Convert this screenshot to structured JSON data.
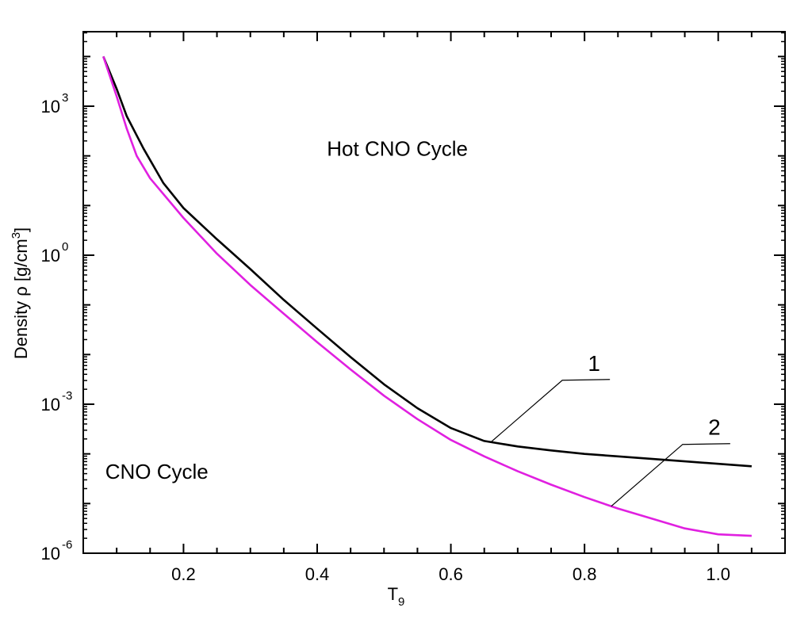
{
  "chart_data": {
    "type": "line",
    "title": "",
    "xlabel": "T",
    "xlabel_subscript": "9",
    "ylabel": "Density ρ [g/cm",
    "ylabel_superscript": "3",
    "ylabel_suffix": "]",
    "y_scale": "log",
    "xlim": [
      0.05,
      1.1
    ],
    "ylim_log10": [
      -6,
      4.5
    ],
    "x_ticks": [
      {
        "value": 0.2,
        "label": "0.2"
      },
      {
        "value": 0.4,
        "label": "0.4"
      },
      {
        "value": 0.6,
        "label": "0.6"
      },
      {
        "value": 0.8,
        "label": "0.8"
      },
      {
        "value": 1.0,
        "label": "1.0"
      }
    ],
    "y_ticks": [
      {
        "log10": 3,
        "base": "10",
        "exp": "3"
      },
      {
        "log10": 0,
        "base": "10",
        "exp": "0"
      },
      {
        "log10": -3,
        "base": "10",
        "exp": "-3"
      },
      {
        "log10": -6,
        "base": "10",
        "exp": "-6"
      }
    ],
    "annotations": [
      {
        "text": "Hot CNO Cycle",
        "x": 0.52,
        "log10y": 2.0
      },
      {
        "text": "CNO Cycle",
        "x": 0.16,
        "log10y": -4.5
      }
    ],
    "series": [
      {
        "name": "1",
        "color": "#000000",
        "x": [
          0.08,
          0.1,
          0.115,
          0.14,
          0.17,
          0.2,
          0.25,
          0.3,
          0.35,
          0.4,
          0.45,
          0.5,
          0.55,
          0.6,
          0.65,
          0.7,
          0.75,
          0.8,
          0.85,
          0.9,
          0.95,
          1.0,
          1.05
        ],
        "log10y": [
          4.0,
          3.35,
          2.8,
          2.15,
          1.45,
          0.95,
          0.32,
          -0.28,
          -0.9,
          -1.48,
          -2.05,
          -2.6,
          -3.08,
          -3.48,
          -3.74,
          -3.85,
          -3.93,
          -4.0,
          -4.05,
          -4.1,
          -4.15,
          -4.2,
          -4.25
        ]
      },
      {
        "name": "2",
        "color": "#e020e0",
        "x": [
          0.08,
          0.1,
          0.115,
          0.13,
          0.15,
          0.2,
          0.25,
          0.3,
          0.35,
          0.4,
          0.45,
          0.5,
          0.55,
          0.6,
          0.65,
          0.7,
          0.75,
          0.8,
          0.85,
          0.9,
          0.95,
          1.0,
          1.05
        ],
        "log10y": [
          4.0,
          3.2,
          2.55,
          2.0,
          1.55,
          0.75,
          0.03,
          -0.6,
          -1.18,
          -1.75,
          -2.3,
          -2.83,
          -3.3,
          -3.72,
          -4.05,
          -4.35,
          -4.62,
          -4.87,
          -5.1,
          -5.3,
          -5.5,
          -5.62,
          -5.65
        ]
      }
    ],
    "callouts": [
      {
        "label": "1",
        "series": "1",
        "x": 0.66
      },
      {
        "label": "2",
        "series": "2",
        "x": 0.84
      }
    ]
  }
}
